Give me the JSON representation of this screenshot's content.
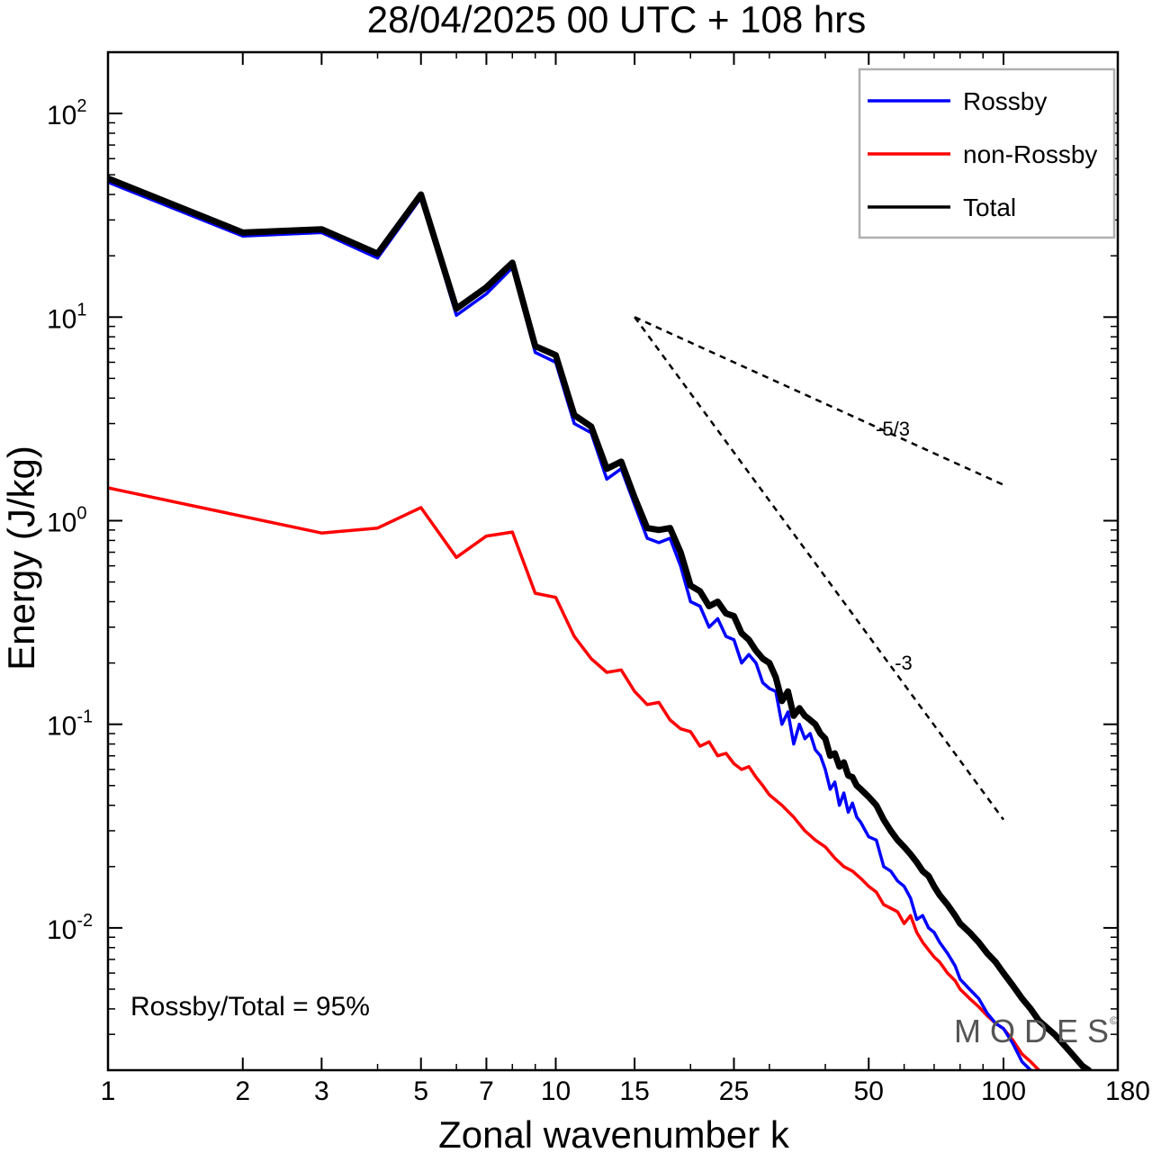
{
  "chart_data": {
    "type": "line",
    "title": "28/04/2025  00 UTC  + 108 hrs",
    "xlabel": "Zonal wavenumber k",
    "ylabel": "Energy (J/kg)",
    "x_scale": "log",
    "y_scale": "log",
    "xlim": [
      1,
      180
    ],
    "ylim": [
      0.002,
      200
    ],
    "x_ticks": [
      {
        "value": 1,
        "label": "1"
      },
      {
        "value": 2,
        "label": "2"
      },
      {
        "value": 3,
        "label": "3"
      },
      {
        "value": 5,
        "label": "5"
      },
      {
        "value": 7,
        "label": "7"
      },
      {
        "value": 10,
        "label": "10"
      },
      {
        "value": 15,
        "label": "15"
      },
      {
        "value": 25,
        "label": "25"
      },
      {
        "value": 50,
        "label": "50"
      },
      {
        "value": 100,
        "label": "100"
      },
      {
        "value": 180,
        "label": "180"
      }
    ],
    "y_ticks": [
      {
        "value": 100,
        "base": "10",
        "exp": "2"
      },
      {
        "value": 10,
        "base": "10",
        "exp": "1"
      },
      {
        "value": 1,
        "base": "10",
        "exp": "0"
      },
      {
        "value": 0.1,
        "base": "10",
        "exp": "-1"
      },
      {
        "value": 0.01,
        "base": "10",
        "exp": "-2"
      }
    ],
    "legend_position": "top-right",
    "grid": false,
    "series": [
      {
        "name": "Rossby",
        "color": "#0000ff",
        "points": [
          [
            1,
            46.0
          ],
          [
            2,
            25.0
          ],
          [
            3,
            26.0
          ],
          [
            4,
            19.5
          ],
          [
            5,
            38.5
          ],
          [
            6,
            10.2
          ],
          [
            7,
            13.0
          ],
          [
            8,
            17.5
          ],
          [
            9,
            6.7
          ],
          [
            10,
            6.0
          ],
          [
            11,
            3.0
          ],
          [
            12,
            2.7
          ],
          [
            13,
            1.6
          ],
          [
            14,
            1.8
          ],
          [
            15,
            1.2
          ],
          [
            16,
            0.82
          ],
          [
            17,
            0.78
          ],
          [
            18,
            0.82
          ],
          [
            19,
            0.6
          ],
          [
            20,
            0.4
          ],
          [
            21,
            0.38
          ],
          [
            22,
            0.3
          ],
          [
            23,
            0.33
          ],
          [
            24,
            0.27
          ],
          [
            25,
            0.26
          ],
          [
            26,
            0.2
          ],
          [
            27,
            0.22
          ],
          [
            28,
            0.2
          ],
          [
            29,
            0.16
          ],
          [
            30,
            0.15
          ],
          [
            31,
            0.145
          ],
          [
            32,
            0.1
          ],
          [
            33,
            0.115
          ],
          [
            34,
            0.08
          ],
          [
            35,
            0.1
          ],
          [
            36,
            0.085
          ],
          [
            37,
            0.09
          ],
          [
            38,
            0.075
          ],
          [
            39,
            0.07
          ],
          [
            40,
            0.06
          ],
          [
            41,
            0.048
          ],
          [
            42,
            0.052
          ],
          [
            43,
            0.04
          ],
          [
            44,
            0.046
          ],
          [
            45,
            0.037
          ],
          [
            46,
            0.041
          ],
          [
            47,
            0.035
          ],
          [
            48,
            0.033
          ],
          [
            50,
            0.028
          ],
          [
            52,
            0.027
          ],
          [
            54,
            0.02
          ],
          [
            56,
            0.019
          ],
          [
            58,
            0.017
          ],
          [
            60,
            0.016
          ],
          [
            62,
            0.014
          ],
          [
            64,
            0.011
          ],
          [
            66,
            0.0115
          ],
          [
            68,
            0.01
          ],
          [
            70,
            0.0095
          ],
          [
            72,
            0.0085
          ],
          [
            75,
            0.0075
          ],
          [
            78,
            0.0065
          ],
          [
            80,
            0.0056
          ],
          [
            84,
            0.005
          ],
          [
            88,
            0.0045
          ],
          [
            92,
            0.0038
          ],
          [
            96,
            0.0034
          ],
          [
            100,
            0.0032
          ],
          [
            105,
            0.0027
          ],
          [
            110,
            0.0022
          ],
          [
            115,
            0.002
          ]
        ]
      },
      {
        "name": "non-Rossby",
        "color": "#ff0000",
        "points": [
          [
            1,
            1.45
          ],
          [
            2,
            1.05
          ],
          [
            3,
            0.87
          ],
          [
            4,
            0.92
          ],
          [
            5,
            1.16
          ],
          [
            6,
            0.66
          ],
          [
            7,
            0.84
          ],
          [
            8,
            0.88
          ],
          [
            9,
            0.44
          ],
          [
            10,
            0.42
          ],
          [
            11,
            0.27
          ],
          [
            12,
            0.21
          ],
          [
            13,
            0.18
          ],
          [
            14,
            0.185
          ],
          [
            15,
            0.145
          ],
          [
            16,
            0.125
          ],
          [
            17,
            0.128
          ],
          [
            18,
            0.105
          ],
          [
            19,
            0.095
          ],
          [
            20,
            0.092
          ],
          [
            21,
            0.078
          ],
          [
            22,
            0.082
          ],
          [
            23,
            0.07
          ],
          [
            24,
            0.072
          ],
          [
            25,
            0.064
          ],
          [
            26,
            0.06
          ],
          [
            27,
            0.062
          ],
          [
            28,
            0.055
          ],
          [
            29,
            0.05
          ],
          [
            30,
            0.045
          ],
          [
            32,
            0.04
          ],
          [
            34,
            0.035
          ],
          [
            36,
            0.03
          ],
          [
            38,
            0.027
          ],
          [
            40,
            0.025
          ],
          [
            42,
            0.022
          ],
          [
            44,
            0.02
          ],
          [
            46,
            0.019
          ],
          [
            48,
            0.0175
          ],
          [
            50,
            0.016
          ],
          [
            52,
            0.015
          ],
          [
            54,
            0.013
          ],
          [
            56,
            0.0125
          ],
          [
            58,
            0.012
          ],
          [
            60,
            0.0105
          ],
          [
            62,
            0.0115
          ],
          [
            64,
            0.0095
          ],
          [
            66,
            0.0085
          ],
          [
            68,
            0.0078
          ],
          [
            70,
            0.0072
          ],
          [
            72,
            0.0068
          ],
          [
            75,
            0.006
          ],
          [
            78,
            0.0055
          ],
          [
            80,
            0.005
          ],
          [
            84,
            0.0045
          ],
          [
            88,
            0.0041
          ],
          [
            92,
            0.0037
          ],
          [
            96,
            0.0034
          ],
          [
            100,
            0.0032
          ],
          [
            105,
            0.0028
          ],
          [
            110,
            0.0024
          ],
          [
            115,
            0.0022
          ],
          [
            120,
            0.002
          ]
        ]
      },
      {
        "name": "Total",
        "color": "#000000",
        "points": [
          [
            1,
            48.0
          ],
          [
            2,
            26.0
          ],
          [
            3,
            27.0
          ],
          [
            4,
            20.5
          ],
          [
            5,
            40.0
          ],
          [
            6,
            11.0
          ],
          [
            7,
            14.0
          ],
          [
            8,
            18.5
          ],
          [
            9,
            7.2
          ],
          [
            10,
            6.5
          ],
          [
            11,
            3.3
          ],
          [
            12,
            2.9
          ],
          [
            13,
            1.8
          ],
          [
            14,
            1.95
          ],
          [
            15,
            1.3
          ],
          [
            16,
            0.92
          ],
          [
            17,
            0.9
          ],
          [
            18,
            0.92
          ],
          [
            19,
            0.7
          ],
          [
            20,
            0.48
          ],
          [
            21,
            0.45
          ],
          [
            22,
            0.38
          ],
          [
            23,
            0.4
          ],
          [
            24,
            0.35
          ],
          [
            25,
            0.34
          ],
          [
            26,
            0.28
          ],
          [
            27,
            0.26
          ],
          [
            28,
            0.23
          ],
          [
            29,
            0.21
          ],
          [
            30,
            0.2
          ],
          [
            31,
            0.17
          ],
          [
            32,
            0.13
          ],
          [
            33,
            0.145
          ],
          [
            34,
            0.11
          ],
          [
            35,
            0.12
          ],
          [
            36,
            0.11
          ],
          [
            37,
            0.105
          ],
          [
            38,
            0.1
          ],
          [
            39,
            0.09
          ],
          [
            40,
            0.085
          ],
          [
            41,
            0.07
          ],
          [
            42,
            0.072
          ],
          [
            43,
            0.062
          ],
          [
            44,
            0.065
          ],
          [
            45,
            0.056
          ],
          [
            46,
            0.055
          ],
          [
            47,
            0.05
          ],
          [
            48,
            0.048
          ],
          [
            50,
            0.044
          ],
          [
            52,
            0.04
          ],
          [
            54,
            0.034
          ],
          [
            56,
            0.03
          ],
          [
            58,
            0.027
          ],
          [
            60,
            0.025
          ],
          [
            62,
            0.023
          ],
          [
            64,
            0.021
          ],
          [
            66,
            0.019
          ],
          [
            68,
            0.018
          ],
          [
            70,
            0.016
          ],
          [
            72,
            0.0145
          ],
          [
            75,
            0.013
          ],
          [
            78,
            0.0115
          ],
          [
            80,
            0.0105
          ],
          [
            84,
            0.0095
          ],
          [
            88,
            0.0085
          ],
          [
            92,
            0.0075
          ],
          [
            96,
            0.0068
          ],
          [
            100,
            0.006
          ],
          [
            105,
            0.0052
          ],
          [
            110,
            0.0045
          ],
          [
            115,
            0.004
          ],
          [
            120,
            0.0035
          ],
          [
            130,
            0.003
          ],
          [
            140,
            0.0025
          ],
          [
            150,
            0.0021
          ],
          [
            155,
            0.002
          ]
        ]
      }
    ],
    "reference_lines": [
      {
        "label": "-5/3",
        "from": [
          15,
          10
        ],
        "to": [
          100,
          1.5
        ]
      },
      {
        "label": "-3",
        "from": [
          15,
          10
        ],
        "to": [
          100,
          0.034
        ]
      }
    ],
    "annotation": "Rossby/Total = 95%",
    "watermark": "MODES",
    "watermark_mark": "©"
  }
}
